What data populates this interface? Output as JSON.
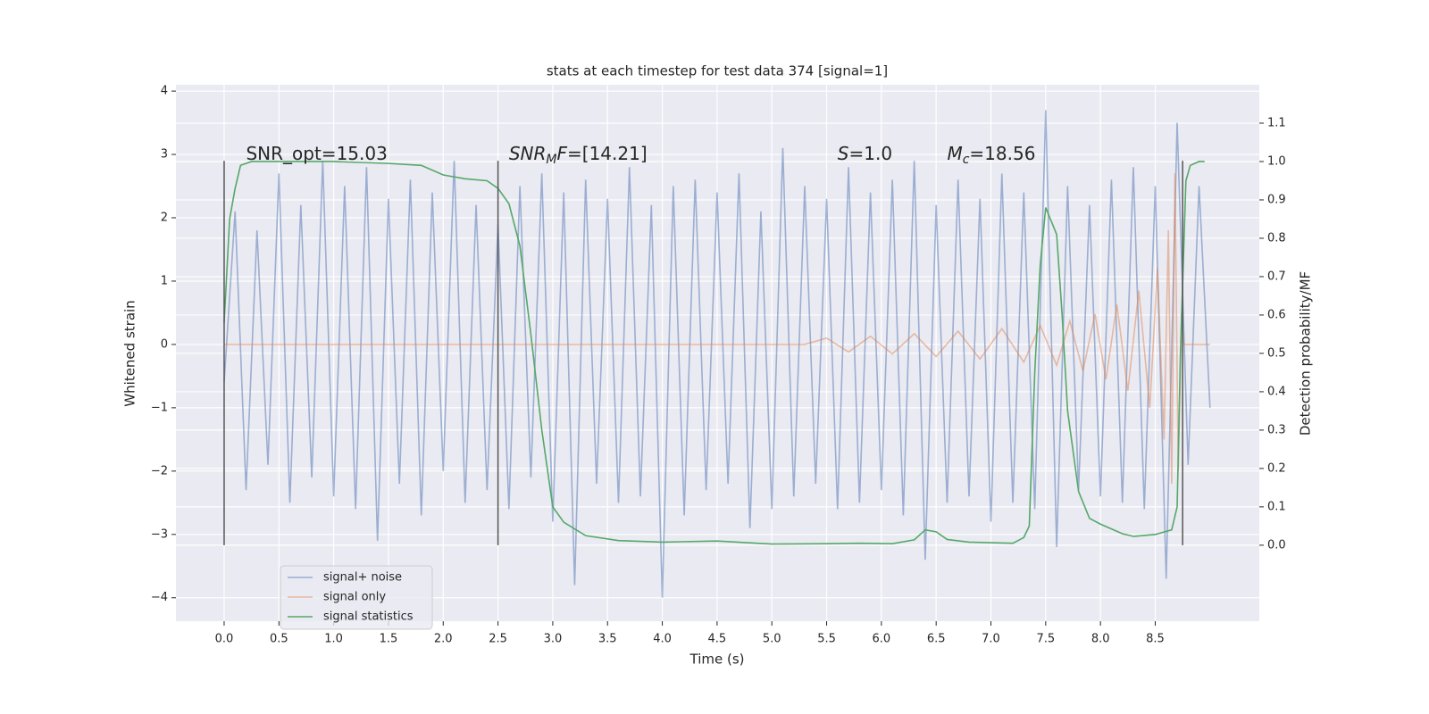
{
  "chart_data": {
    "type": "line",
    "title": "stats at each timestep for test data 374 [signal=1]",
    "xlabel": "Time (s)",
    "ylabel": "Whitened strain",
    "y2label": "Detection probability/MF",
    "xlim": [
      -0.44,
      9.45
    ],
    "ylim": [
      -4.37,
      4.1
    ],
    "y2lim": [
      -0.198,
      1.2
    ],
    "xticks": [
      {
        "value": 0,
        "label": "0.0"
      },
      {
        "value": 0.5,
        "label": "0.5"
      },
      {
        "value": 1,
        "label": "1.0"
      },
      {
        "value": 1.5,
        "label": "1.5"
      },
      {
        "value": 2,
        "label": "2.0"
      },
      {
        "value": 2.5,
        "label": "2.5"
      },
      {
        "value": 3,
        "label": "3.0"
      },
      {
        "value": 3.5,
        "label": "3.5"
      },
      {
        "value": 4,
        "label": "4.0"
      },
      {
        "value": 4.5,
        "label": "4.5"
      },
      {
        "value": 5,
        "label": "5.0"
      },
      {
        "value": 5.5,
        "label": "5.5"
      },
      {
        "value": 6,
        "label": "6.0"
      },
      {
        "value": 6.5,
        "label": "6.5"
      },
      {
        "value": 7,
        "label": "7.0"
      },
      {
        "value": 7.5,
        "label": "7.5"
      },
      {
        "value": 8,
        "label": "8.0"
      },
      {
        "value": 8.5,
        "label": "8.5"
      }
    ],
    "yticks": [
      {
        "value": -4,
        "label": "−4"
      },
      {
        "value": -3,
        "label": "−3"
      },
      {
        "value": -2,
        "label": "−2"
      },
      {
        "value": -1,
        "label": "−1"
      },
      0,
      1,
      2,
      3,
      4
    ],
    "y2ticks": [
      {
        "value": 0,
        "label": "0.0"
      },
      {
        "value": 0.1,
        "label": "0.1"
      },
      {
        "value": 0.2,
        "label": "0.2"
      },
      {
        "value": 0.3,
        "label": "0.3"
      },
      {
        "value": 0.4,
        "label": "0.4"
      },
      {
        "value": 0.5,
        "label": "0.5"
      },
      {
        "value": 0.6,
        "label": "0.6"
      },
      {
        "value": 0.7,
        "label": "0.7"
      },
      {
        "value": 0.8,
        "label": "0.8"
      },
      {
        "value": 0.9,
        "label": "0.9"
      },
      {
        "value": 1,
        "label": "1.0"
      },
      {
        "value": 1.1,
        "label": "1.1"
      }
    ],
    "grid": true,
    "legend_loc": "lower left",
    "series": [
      {
        "name": "signal+ noise",
        "color": "#4c72b0",
        "opacity": 0.5,
        "x": [
          0.0,
          0.1,
          0.2,
          0.3,
          0.4,
          0.5,
          0.6,
          0.7,
          0.8,
          0.9,
          1.0,
          1.1,
          1.2,
          1.3,
          1.4,
          1.5,
          1.6,
          1.7,
          1.8,
          1.9,
          2.0,
          2.1,
          2.2,
          2.3,
          2.4,
          2.5,
          2.6,
          2.7,
          2.8,
          2.9,
          3.0,
          3.1,
          3.2,
          3.3,
          3.4,
          3.5,
          3.6,
          3.7,
          3.8,
          3.9,
          4.0,
          4.1,
          4.2,
          4.3,
          4.4,
          4.5,
          4.6,
          4.7,
          4.8,
          4.9,
          5.0,
          5.1,
          5.2,
          5.3,
          5.4,
          5.5,
          5.6,
          5.7,
          5.8,
          5.9,
          6.0,
          6.1,
          6.2,
          6.3,
          6.4,
          6.5,
          6.6,
          6.7,
          6.8,
          6.9,
          7.0,
          7.1,
          7.2,
          7.3,
          7.4,
          7.5,
          7.6,
          7.7,
          7.8,
          7.9,
          8.0,
          8.1,
          8.2,
          8.3,
          8.4,
          8.5,
          8.6,
          8.7,
          8.8,
          8.9,
          9.0
        ],
        "values": [
          -0.6,
          2.1,
          -2.3,
          1.8,
          -1.9,
          2.7,
          -2.5,
          2.2,
          -2.1,
          2.9,
          -2.4,
          2.5,
          -2.6,
          2.8,
          -3.1,
          2.3,
          -2.2,
          2.6,
          -2.7,
          2.4,
          -2.0,
          2.9,
          -2.5,
          2.2,
          -2.3,
          1.9,
          -2.6,
          2.5,
          -2.1,
          2.7,
          -2.8,
          2.4,
          -3.8,
          2.6,
          -2.2,
          2.3,
          -2.5,
          2.8,
          -2.4,
          2.2,
          -4.0,
          2.5,
          -2.7,
          2.6,
          -2.3,
          2.4,
          -2.2,
          2.7,
          -2.9,
          2.1,
          -2.6,
          3.1,
          -2.4,
          2.5,
          -2.2,
          2.3,
          -2.6,
          2.8,
          -2.5,
          2.4,
          -2.3,
          2.6,
          -2.7,
          2.9,
          -3.4,
          2.2,
          -2.5,
          2.6,
          -2.4,
          2.3,
          -2.8,
          2.7,
          -2.5,
          2.4,
          -2.6,
          3.7,
          -3.2,
          2.5,
          -2.3,
          2.2,
          -2.4,
          2.6,
          -2.5,
          2.8,
          -2.6,
          2.5,
          -3.7,
          3.5,
          -1.9,
          2.5,
          -1.0
        ]
      },
      {
        "name": "signal only",
        "color": "#dd8452",
        "opacity": 0.5,
        "x": [
          0.0,
          5.3,
          5.5,
          5.7,
          5.9,
          6.1,
          6.3,
          6.5,
          6.7,
          6.9,
          7.1,
          7.3,
          7.45,
          7.6,
          7.72,
          7.84,
          7.95,
          8.05,
          8.15,
          8.25,
          8.35,
          8.45,
          8.52,
          8.58,
          8.62,
          8.65,
          8.68,
          8.71,
          8.74,
          8.76,
          9.0
        ],
        "values": [
          0,
          0,
          0.1,
          -0.12,
          0.13,
          -0.15,
          0.17,
          -0.19,
          0.21,
          -0.23,
          0.25,
          -0.28,
          0.3,
          -0.33,
          0.37,
          -0.42,
          0.48,
          -0.55,
          0.63,
          -0.73,
          0.85,
          -1.0,
          1.2,
          -1.5,
          1.8,
          -2.2,
          2.7,
          -2.0,
          0.5,
          0,
          0
        ]
      },
      {
        "name": "signal statistics",
        "color": "#55a868",
        "opacity": 1,
        "axis": "y2",
        "x": [
          0.0,
          0.05,
          0.1,
          0.15,
          0.25,
          0.5,
          1.0,
          1.5,
          1.8,
          2.0,
          2.2,
          2.4,
          2.5,
          2.6,
          2.7,
          2.8,
          2.9,
          3.0,
          3.1,
          3.3,
          3.6,
          4.0,
          4.5,
          5.0,
          5.5,
          5.8,
          6.1,
          6.3,
          6.4,
          6.5,
          6.6,
          6.8,
          7.2,
          7.3,
          7.35,
          7.4,
          7.45,
          7.5,
          7.6,
          7.65,
          7.7,
          7.8,
          7.9,
          8.0,
          8.2,
          8.3,
          8.5,
          8.65,
          8.7,
          8.73,
          8.78,
          8.82,
          8.9,
          8.95
        ],
        "values": [
          0.58,
          0.85,
          0.93,
          0.99,
          1.0,
          1.0,
          1.0,
          0.995,
          0.99,
          0.965,
          0.955,
          0.95,
          0.93,
          0.89,
          0.78,
          0.55,
          0.3,
          0.1,
          0.06,
          0.025,
          0.012,
          0.008,
          0.011,
          0.003,
          0.004,
          0.005,
          0.004,
          0.014,
          0.04,
          0.035,
          0.015,
          0.008,
          0.005,
          0.02,
          0.05,
          0.45,
          0.73,
          0.88,
          0.81,
          0.6,
          0.35,
          0.14,
          0.07,
          0.055,
          0.03,
          0.023,
          0.028,
          0.04,
          0.1,
          0.5,
          0.95,
          0.99,
          1.0,
          1.0
        ]
      }
    ],
    "vlines": {
      "x": [
        0,
        2.5,
        8.75
      ],
      "ymin": -3.17,
      "ymax": 2.9,
      "color": "#555555"
    },
    "annotations": [
      {
        "x": 0.2,
        "y": 3,
        "runs": [
          {
            "text": "SNR_opt=15.03",
            "italic": false,
            "sub": false
          }
        ]
      },
      {
        "x": 2.6,
        "y": 3,
        "runs": [
          {
            "text": "SNR",
            "italic": true,
            "sub": false
          },
          {
            "text": "M",
            "italic": true,
            "sub": true
          },
          {
            "text": "F",
            "italic": true,
            "sub": false
          },
          {
            "text": "=[14.21]",
            "italic": false,
            "sub": false
          }
        ]
      },
      {
        "x": 5.6,
        "y": 3,
        "runs": [
          {
            "text": "S",
            "italic": true,
            "sub": false
          },
          {
            "text": "=1.0",
            "italic": false,
            "sub": false
          }
        ]
      },
      {
        "x": 6.6,
        "y": 3,
        "runs": [
          {
            "text": "M",
            "italic": true,
            "sub": false
          },
          {
            "text": "c",
            "italic": true,
            "sub": true
          },
          {
            "text": "=18.56",
            "italic": false,
            "sub": false
          }
        ]
      }
    ]
  }
}
